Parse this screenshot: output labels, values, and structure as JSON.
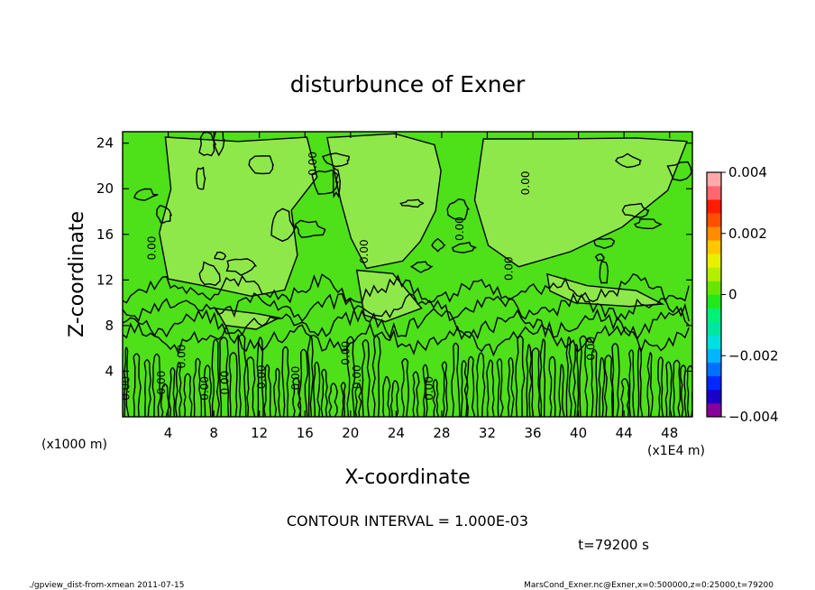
{
  "chart_data": {
    "type": "heatmap",
    "title": "disturbunce of Exner",
    "xlabel": "X-coordinate",
    "ylabel": "Z-coordinate",
    "x_unit": "(x1E4 m)",
    "y_unit": "(x1000 m)",
    "xlim": [
      0,
      50
    ],
    "ylim": [
      0,
      25
    ],
    "x_ticks": [
      4,
      8,
      12,
      16,
      20,
      24,
      28,
      32,
      36,
      40,
      44,
      48
    ],
    "y_ticks": [
      4,
      8,
      12,
      16,
      20,
      24
    ],
    "contour_interval_text": "CONTOUR INTERVAL = 1.000E-03",
    "contour_labels": [
      {
        "x": 0.6,
        "z": 2.5,
        "text": "0.00"
      },
      {
        "x": 3.7,
        "z": 3.0,
        "text": "0.00"
      },
      {
        "x": 5.5,
        "z": 5.3,
        "text": "0.00"
      },
      {
        "x": 7.5,
        "z": 2.5,
        "text": "0.00"
      },
      {
        "x": 9.3,
        "z": 3.0,
        "text": "0.00"
      },
      {
        "x": 12.5,
        "z": 3.5,
        "text": "0.00"
      },
      {
        "x": 15.5,
        "z": 3.4,
        "text": "0.00"
      },
      {
        "x": 2.9,
        "z": 14.8,
        "text": "0.00"
      },
      {
        "x": 17.0,
        "z": 22.2,
        "text": "0.00"
      },
      {
        "x": 19.9,
        "z": 5.6,
        "text": "0.00"
      },
      {
        "x": 20.9,
        "z": 3.5,
        "text": "0.00"
      },
      {
        "x": 21.5,
        "z": 14.5,
        "text": "0.00"
      },
      {
        "x": 27.2,
        "z": 2.5,
        "text": "0.00"
      },
      {
        "x": 29.9,
        "z": 16.5,
        "text": "0.00"
      },
      {
        "x": 34.2,
        "z": 13.0,
        "text": "0.00"
      },
      {
        "x": 35.7,
        "z": 20.5,
        "text": "0.00"
      },
      {
        "x": 41.4,
        "z": 6.0,
        "text": "0.00"
      }
    ],
    "colorbar": {
      "min": -0.004,
      "max": 0.004,
      "tick_labels": [
        "0.004",
        "0.002",
        "0",
        "−0.002",
        "−0.004"
      ],
      "tick_values": [
        0.004,
        0.002,
        0,
        -0.002,
        -0.004
      ],
      "colors": [
        "#880099",
        "#1a00c8",
        "#0028ff",
        "#0070ff",
        "#00b4ff",
        "#00e0e0",
        "#00e6a0",
        "#00f078",
        "#22e81c",
        "#66e600",
        "#b4ee00",
        "#e6f000",
        "#ffc800",
        "#ff8c00",
        "#ff5000",
        "#ff1c00",
        "#ff6670",
        "#ffaaaa"
      ]
    },
    "field_colors": {
      "background": "#4ee018",
      "light_region": "#8ee84a",
      "contour": "#000000"
    },
    "time_label": "t=79200 s",
    "footer_left": "./gpview_dist-from-xmean   2011-07-15",
    "footer_right": "MarsCond_Exner.nc@Exner,x=0:500000,z=0:25000,t=79200"
  }
}
